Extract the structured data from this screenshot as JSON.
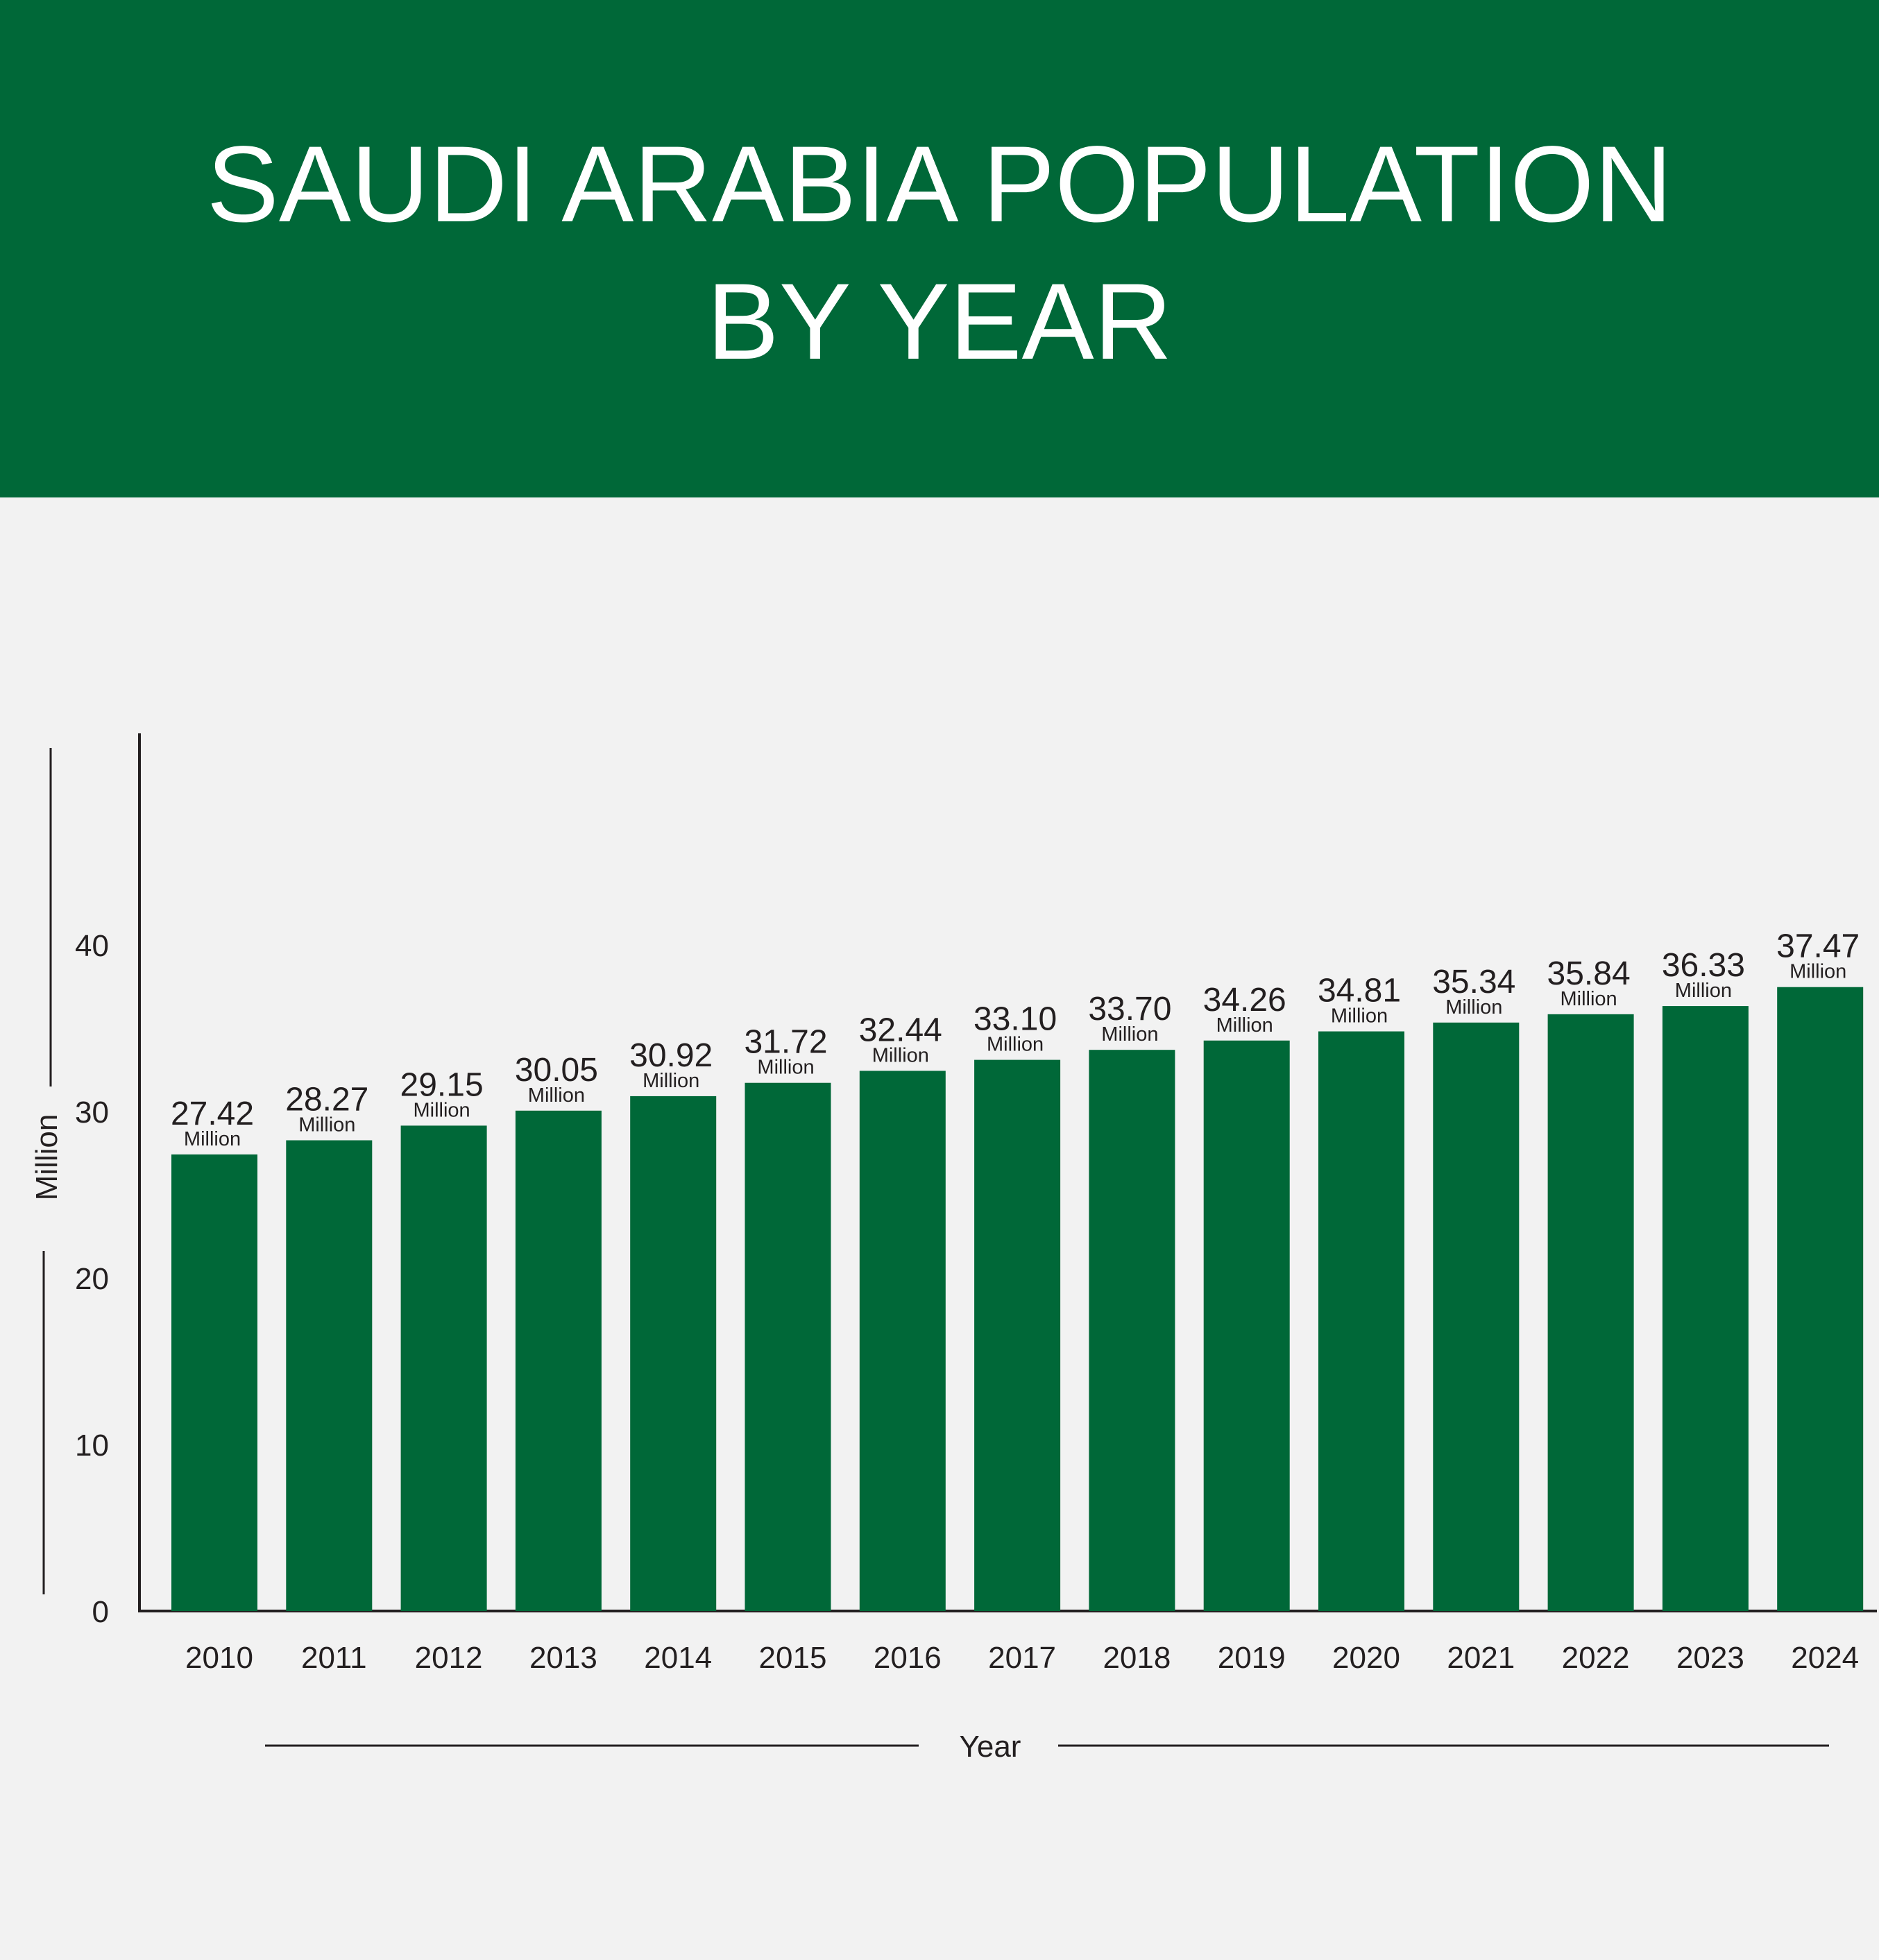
{
  "header": {
    "title_line_1": "SAUDI ARABIA POPULATION",
    "title_line_2": "BY YEAR"
  },
  "colors": {
    "banner": "#006838",
    "bar": "#006838",
    "background": "#f2f2f2",
    "text": "#231f20"
  },
  "chart_data": {
    "type": "bar",
    "title": "SAUDI ARABIA POPULATION BY YEAR",
    "xlabel": "Year",
    "ylabel": "Million",
    "ylim": [
      0,
      50
    ],
    "yticks": [
      0,
      10,
      20,
      30,
      40
    ],
    "grid": false,
    "categories": [
      "2010",
      "2011",
      "2012",
      "2013",
      "2014",
      "2015",
      "2016",
      "2017",
      "2018",
      "2019",
      "2020",
      "2021",
      "2022",
      "2023",
      "2024"
    ],
    "values": [
      27.42,
      28.27,
      29.15,
      30.05,
      30.92,
      31.72,
      32.44,
      33.1,
      33.7,
      34.26,
      34.81,
      35.34,
      35.84,
      36.33,
      37.47
    ],
    "value_labels": [
      "27.42",
      "28.27",
      "29.15",
      "30.05",
      "30.92",
      "31.72",
      "32.44",
      "33.10",
      "33.70",
      "34.26",
      "34.81",
      "35.34",
      "35.84",
      "36.33",
      "37.47"
    ],
    "unit_label": "Million"
  }
}
